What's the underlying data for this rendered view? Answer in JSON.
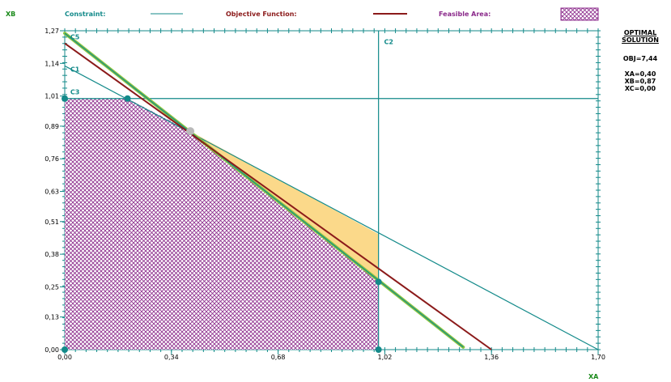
{
  "legend": {
    "constraint_label": "Constraint:",
    "objective_label": "Objective Function:",
    "feasible_label": "Feasible Area:"
  },
  "axes": {
    "y_name": "XB",
    "x_name": "XA"
  },
  "solution_panel": {
    "title_line1": "OPTIMAL",
    "title_line2": "SOLUTION",
    "obj": "OBJ=7,44",
    "xa": "XA=0,40",
    "xb": "XB=0,87",
    "xc": "XC=0,00"
  },
  "colors": {
    "constraint": "#138a8a",
    "objective": "#8b1a1a",
    "feasible_hatch": "#8b2a8b",
    "highlight_green": "#8cc63f",
    "improvement_fill": "#fbd98a",
    "axis_name": "#1a8a1a"
  },
  "chart_data": {
    "type": "line",
    "xlabel": "XA",
    "ylabel": "XB",
    "xlim": [
      0,
      1.7
    ],
    "ylim": [
      0,
      1.27
    ],
    "x_ticks": [
      "0,00",
      "0,34",
      "0,68",
      "1,02",
      "1,36",
      "1,70"
    ],
    "x_tick_values": [
      0,
      0.34,
      0.68,
      1.02,
      1.36,
      1.7
    ],
    "y_ticks": [
      "0,00",
      "0,13",
      "0,25",
      "0,38",
      "0,51",
      "0,63",
      "0,76",
      "0,89",
      "1,01",
      "1,14",
      "1,27"
    ],
    "y_tick_values": [
      0,
      0.13,
      0.25,
      0.38,
      0.51,
      0.63,
      0.76,
      0.89,
      1.01,
      1.14,
      1.27
    ],
    "constraints": [
      {
        "name": "C1",
        "points": [
          [
            0,
            1.13
          ],
          [
            1.7,
            0
          ]
        ]
      },
      {
        "name": "C2",
        "points": [
          [
            1.0,
            0
          ],
          [
            1.0,
            1.27
          ]
        ]
      },
      {
        "name": "C3",
        "points": [
          [
            0,
            1.0
          ],
          [
            1.7,
            1.0
          ]
        ]
      },
      {
        "name": "C5",
        "points": [
          [
            0,
            1.26
          ],
          [
            1.27,
            0.01
          ]
        ]
      }
    ],
    "objective_line": [
      [
        0,
        1.22
      ],
      [
        1.36,
        0
      ]
    ],
    "feasible_area": [
      [
        0,
        0
      ],
      [
        0,
        1.0
      ],
      [
        0.2,
        1.0
      ],
      [
        0.4,
        0.87
      ],
      [
        1.0,
        0.27
      ],
      [
        1.0,
        0
      ]
    ],
    "improvement_area": [
      [
        0.4,
        0.87
      ],
      [
        1.0,
        0.46
      ],
      [
        1.0,
        0.27
      ]
    ],
    "vertices": [
      [
        0,
        0
      ],
      [
        0,
        1.0
      ],
      [
        0.2,
        1.0
      ],
      [
        1.0,
        0.27
      ],
      [
        1.0,
        0
      ]
    ],
    "optimal_point": [
      0.4,
      0.87
    ]
  }
}
